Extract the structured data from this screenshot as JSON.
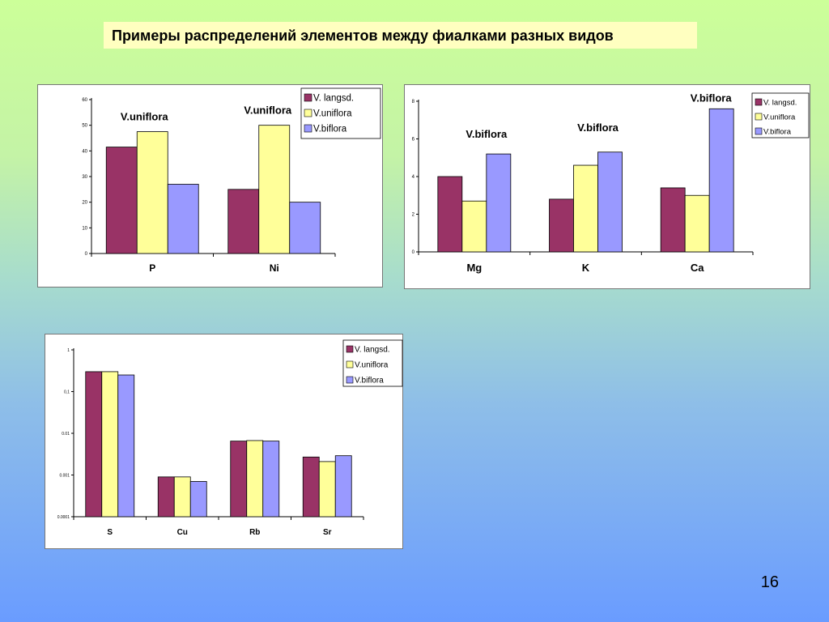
{
  "slide": {
    "title": "Примеры распределений элементов между фиалками разных видов",
    "page_number": "16"
  },
  "colors": {
    "langsd": "#993366",
    "uniflora": "#ffff99",
    "biflora": "#9999ff"
  },
  "chart_data": [
    {
      "type": "bar",
      "categories": [
        "P",
        "Ni"
      ],
      "series": [
        {
          "name": "V. langsd.",
          "values": [
            41.5,
            25
          ]
        },
        {
          "name": "V.uniflora",
          "values": [
            47.5,
            50
          ]
        },
        {
          "name": "V.biflora",
          "values": [
            27,
            20
          ]
        }
      ],
      "ylim": [
        0,
        60
      ],
      "yticks": [
        0,
        10,
        20,
        30,
        40,
        50,
        60
      ],
      "ytick_labels": [
        "0",
        "10",
        "20",
        "30",
        "40",
        "50",
        "60"
      ],
      "annotations": [
        {
          "text": "V.uniflora",
          "category": 0,
          "series": 1
        },
        {
          "text": "V.uniflora",
          "category": 1,
          "series": 1
        }
      ],
      "legend_position": "top-right",
      "grid": false
    },
    {
      "type": "bar",
      "categories": [
        "Mg",
        "K",
        "Ca"
      ],
      "series": [
        {
          "name": "V. langsd.",
          "values": [
            4.0,
            2.8,
            3.4
          ]
        },
        {
          "name": "V.uniflora",
          "values": [
            2.7,
            4.6,
            3.0
          ]
        },
        {
          "name": "V.biflora",
          "values": [
            5.2,
            5.3,
            7.6
          ]
        }
      ],
      "ylim": [
        0,
        8
      ],
      "yticks": [
        0,
        2,
        4,
        6,
        8
      ],
      "ytick_labels": [
        "0",
        "2",
        "4",
        "6",
        "8"
      ],
      "annotations": [
        {
          "text": "V.biflora",
          "category": 0,
          "series": 2
        },
        {
          "text": "V.biflora",
          "category": 1,
          "series": 2
        },
        {
          "text": "V.biflora",
          "category": 2,
          "series": 2
        }
      ],
      "legend_position": "top-right",
      "grid": false
    },
    {
      "type": "bar",
      "log_scale": true,
      "categories": [
        "S",
        "Cu",
        "Rb",
        "Sr"
      ],
      "series": [
        {
          "name": "V. langsd.",
          "values": [
            0.3,
            0.0009,
            0.0065,
            0.0027
          ]
        },
        {
          "name": "V.uniflora",
          "values": [
            0.3,
            0.0009,
            0.0067,
            0.0021
          ]
        },
        {
          "name": "V.biflora",
          "values": [
            0.25,
            0.0007,
            0.0065,
            0.0029
          ]
        }
      ],
      "ylim": [
        0.0001,
        1
      ],
      "yticks": [
        0.0001,
        0.001,
        0.01,
        0.1,
        1
      ],
      "ytick_labels": [
        "0.0001",
        "0.001",
        "0.01",
        "0,1",
        "1"
      ],
      "annotations": [],
      "legend_position": "top-right",
      "grid": false
    }
  ]
}
